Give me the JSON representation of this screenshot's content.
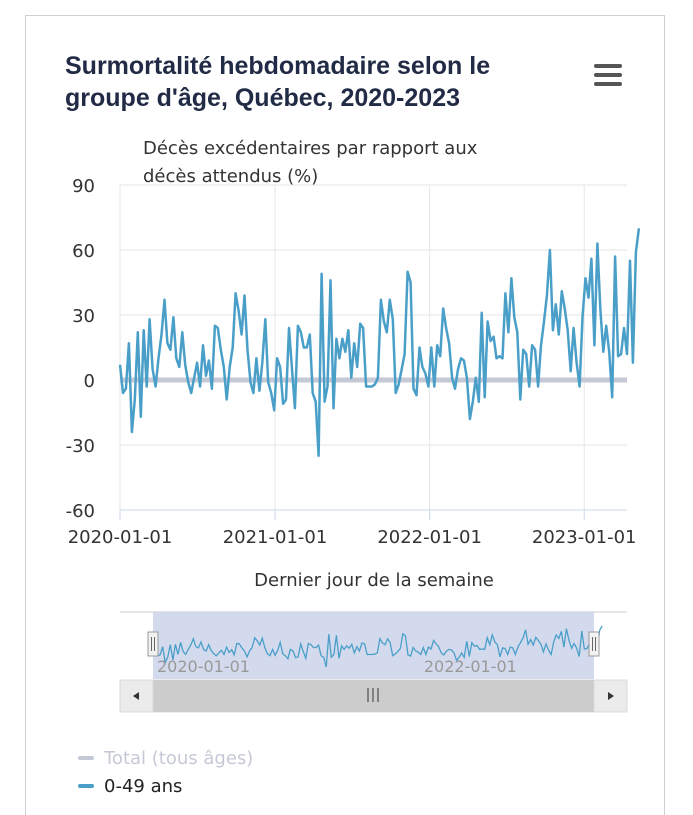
{
  "title": "Surmortalité hebdomadaire selon le groupe d'âge, Québec, 2020-2023",
  "menu_icon": "hamburger-menu-icon",
  "colors": {
    "series_total": "#c5c9d6",
    "series_0_49": "#4a9fc9",
    "grid": "#e6e6e6",
    "navigator_mask": "#cdd4ea"
  },
  "navigator": {
    "labels": [
      "2020-01-01",
      "2022-01-01"
    ],
    "scroll_left_icon": "arrow-left-icon",
    "scroll_right_icon": "arrow-right-icon",
    "grip_icon": "grip-icon"
  },
  "chart_data": {
    "type": "line",
    "title": "Surmortalité hebdomadaire selon le groupe d'âge, Québec, 2020-2023",
    "ylabel": "Décès excédentaires par rapport aux décès attendus (%)",
    "xlabel": "Dernier jour de la semaine",
    "ylim": [
      -60,
      90
    ],
    "yticks": [
      90,
      60,
      30,
      0,
      -30,
      -60
    ],
    "xlim": [
      "2020-01-01",
      "2023-04-12"
    ],
    "xticks": [
      "2020-01-01",
      "2021-01-01",
      "2022-01-01",
      "2023-01-01"
    ],
    "legend": "bottom-left",
    "grid": true,
    "series": [
      {
        "name": "Total (tous âges)",
        "start": "2020-01-01",
        "interval_days": 7,
        "values": [
          0,
          0
        ],
        "constant_value": 0,
        "end": "2023-04-12"
      },
      {
        "name": "0-49 ans",
        "start": "2020-01-01",
        "interval_days": 7,
        "values": [
          7,
          -6,
          -4,
          17,
          -24,
          -9,
          22,
          -17,
          23,
          -3,
          28,
          5,
          -3,
          10,
          21,
          37,
          17,
          14,
          29,
          10,
          6,
          22,
          7,
          -1,
          -6,
          1,
          8,
          -3,
          16,
          2,
          9,
          -4,
          25,
          24,
          14,
          6,
          -9,
          6,
          15,
          40,
          32,
          21,
          39,
          14,
          -1,
          -6,
          10,
          -5,
          8,
          28,
          -1,
          -6,
          -14,
          10,
          6,
          -11,
          -9,
          24,
          5,
          -13,
          25,
          22,
          15,
          15,
          21,
          -6,
          -10,
          -35,
          49,
          -10,
          -3,
          46,
          -13,
          19,
          10,
          19,
          13,
          23,
          1,
          17,
          6,
          26,
          24,
          -3,
          -3,
          -3,
          -2,
          1,
          37,
          27,
          22,
          37,
          28,
          -6,
          -2,
          5,
          12,
          50,
          45,
          -4,
          -7,
          15,
          6,
          3,
          -3,
          15,
          -3,
          16,
          11,
          33,
          24,
          17,
          1,
          -4,
          5,
          10,
          9,
          1,
          -18,
          -10,
          1,
          -10,
          31,
          -8,
          27,
          18,
          20,
          10,
          11,
          10,
          40,
          22,
          47,
          29,
          22,
          -9,
          14,
          12,
          -3,
          16,
          14,
          -3,
          16,
          27,
          39,
          60,
          23,
          35,
          21,
          41,
          33,
          23,
          4,
          24,
          8,
          -3,
          29,
          47,
          38,
          56,
          16,
          63,
          33,
          13,
          25,
          13,
          -8,
          57,
          11,
          12,
          24,
          12,
          55,
          8,
          59,
          70
        ]
      }
    ]
  }
}
